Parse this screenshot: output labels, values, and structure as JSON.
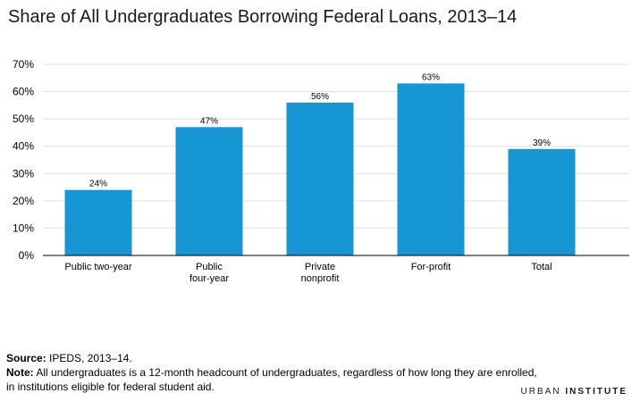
{
  "title": "Share of All Undergraduates Borrowing Federal Loans, 2013–14",
  "chart_data": {
    "type": "bar",
    "categories": [
      [
        "Public two-year"
      ],
      [
        "Public",
        "four-year"
      ],
      [
        "Private",
        "nonprofit"
      ],
      [
        "For-profit"
      ],
      [
        "Total"
      ]
    ],
    "values": [
      24,
      47,
      56,
      63,
      39
    ],
    "data_labels": [
      "24%",
      "47%",
      "56%",
      "63%",
      "39%"
    ],
    "ylim": [
      0,
      70
    ],
    "yticks": [
      0,
      10,
      20,
      30,
      40,
      50,
      60,
      70
    ],
    "ytick_labels": [
      "0%",
      "10%",
      "20%",
      "30%",
      "40%",
      "50%",
      "60%",
      "70%"
    ],
    "bar_color": "#1696d2",
    "grid_color": "#e0e0e0",
    "grid": true
  },
  "footer": {
    "source_label": "Source:",
    "source_text": " IPEDS, 2013–14.",
    "note_label": "Note:",
    "note_text": " All undergraduates is a 12-month headcount of undergraduates, regardless of how long they are enrolled, in institutions eligible for federal student aid."
  },
  "brand": {
    "first": "URBAN",
    "second": "INSTITUTE"
  }
}
